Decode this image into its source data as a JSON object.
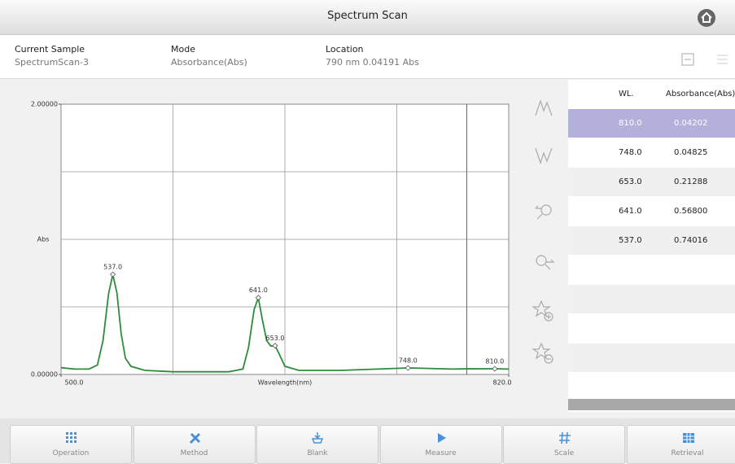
{
  "header": {
    "title": "Spectrum Scan"
  },
  "info": [
    {
      "label": "Current Sample",
      "value": "SpectrumScan-3"
    },
    {
      "label": "Mode",
      "value": "Absorbance(Abs)"
    },
    {
      "label": "Location",
      "value": "790 nm 0.04191 Abs"
    }
  ],
  "chart_data": {
    "type": "line",
    "x_label": "Wavelength(nm)",
    "y_label": "Abs",
    "xlim": [
      500,
      820
    ],
    "ylim": [
      0,
      2
    ],
    "xticks": [
      {
        "value": 500,
        "label": "500.0"
      },
      {
        "value": 820,
        "label": "820.0"
      }
    ],
    "yticks": [
      {
        "value": 0,
        "label": "0.00000"
      },
      {
        "value": 2,
        "label": "2.00000"
      }
    ],
    "xgrid": [
      500,
      580,
      660,
      740,
      820
    ],
    "ygrid": [
      0,
      0.5,
      1,
      1.5,
      2
    ],
    "cursor_x": 790,
    "cursor_color": "#c0392b",
    "series": [
      {
        "name": "SpectrumScan-3",
        "color": "#2e8b3a",
        "x": [
          500,
          510,
          520,
          526,
          530,
          534,
          537,
          540,
          543,
          546,
          550,
          560,
          580,
          600,
          620,
          630,
          634,
          638,
          641,
          644,
          647,
          650,
          653,
          656,
          660,
          670,
          700,
          748,
          780,
          790,
          810,
          820
        ],
        "values": [
          0.05,
          0.04,
          0.04,
          0.07,
          0.25,
          0.6,
          0.74016,
          0.6,
          0.3,
          0.12,
          0.06,
          0.03,
          0.02,
          0.02,
          0.02,
          0.04,
          0.2,
          0.48,
          0.568,
          0.4,
          0.25,
          0.21,
          0.21288,
          0.15,
          0.06,
          0.03,
          0.03,
          0.04825,
          0.04,
          0.04191,
          0.04202,
          0.04
        ]
      }
    ],
    "peaks": [
      {
        "x": 537,
        "value": 0.74016,
        "label": "537.0"
      },
      {
        "x": 641,
        "value": 0.568,
        "label": "641.0"
      },
      {
        "x": 653,
        "value": 0.21288,
        "label": "653.0"
      },
      {
        "x": 748,
        "value": 0.04825,
        "label": "748.0"
      },
      {
        "x": 810,
        "value": 0.04202,
        "label": "810.0"
      }
    ]
  },
  "table": {
    "columns": [
      "WL.",
      "Absorbance(Abs)"
    ],
    "rows": [
      [
        "810.0",
        "0.04202"
      ],
      [
        "748.0",
        "0.04825"
      ],
      [
        "653.0",
        "0.21288"
      ],
      [
        "641.0",
        "0.56800"
      ],
      [
        "537.0",
        "0.74016"
      ]
    ],
    "selected_row": 0,
    "empty_rows": 5
  },
  "toolbar": [
    "Operation",
    "Method",
    "Blank",
    "Measure",
    "Scale",
    "Retrieval"
  ]
}
